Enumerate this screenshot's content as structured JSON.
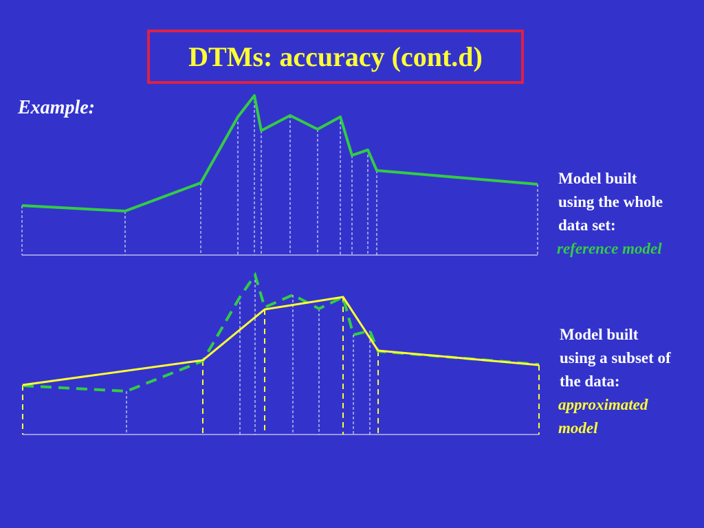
{
  "title": "DTMs: accuracy (cont.d)",
  "example": "Example:",
  "reference": {
    "lines": [
      "Model built",
      "using the whole",
      "data set:"
    ],
    "emphasis": "reference model"
  },
  "approximated": {
    "lines": [
      "Model built",
      "using a subset of",
      "the data:"
    ],
    "emphasis": [
      "approximated",
      "model"
    ]
  }
}
